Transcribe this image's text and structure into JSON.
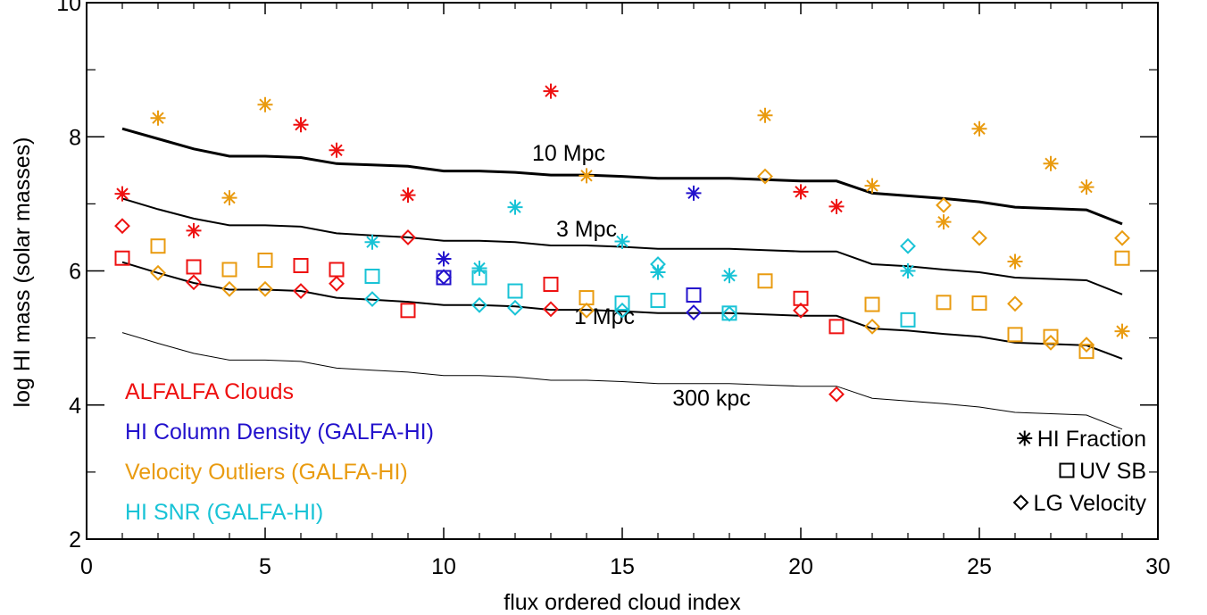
{
  "chart_data": {
    "type": "scatter",
    "xlabel": "flux ordered cloud index",
    "ylabel": "log HI mass (solar masses)",
    "xlim": [
      0,
      30
    ],
    "ylim": [
      2,
      10
    ],
    "x_ticks": [
      "0",
      "5",
      "10",
      "15",
      "20",
      "25",
      "30"
    ],
    "y_ticks": [
      "2",
      "4",
      "6",
      "8",
      "10"
    ],
    "colors": {
      "alfalfa": "#ee1111",
      "column": "#2211cc",
      "velocity": "#e99b10",
      "snr": "#18c3d6"
    },
    "reference_curves": [
      {
        "label": "10 Mpc",
        "stroke": "thick",
        "x": [
          1,
          2,
          3,
          4,
          5,
          6,
          7,
          8,
          9,
          10,
          11,
          12,
          13,
          14,
          15,
          16,
          17,
          18,
          19,
          20,
          21,
          22,
          23,
          24,
          25,
          26,
          27,
          28,
          29
        ],
        "y": [
          8.12,
          7.97,
          7.82,
          7.71,
          7.71,
          7.69,
          7.6,
          7.58,
          7.56,
          7.49,
          7.49,
          7.47,
          7.43,
          7.43,
          7.41,
          7.38,
          7.38,
          7.38,
          7.36,
          7.34,
          7.34,
          7.16,
          7.12,
          7.08,
          7.03,
          6.95,
          6.93,
          6.91,
          6.7
        ]
      },
      {
        "label": "3 Mpc",
        "stroke": "medium",
        "x": [
          1,
          2,
          3,
          4,
          5,
          6,
          7,
          8,
          9,
          10,
          11,
          12,
          13,
          14,
          15,
          16,
          17,
          18,
          19,
          20,
          21,
          22,
          23,
          24,
          25,
          26,
          27,
          28,
          29
        ],
        "y": [
          7.08,
          6.92,
          6.78,
          6.68,
          6.68,
          6.66,
          6.56,
          6.53,
          6.5,
          6.45,
          6.45,
          6.43,
          6.38,
          6.38,
          6.36,
          6.33,
          6.33,
          6.33,
          6.31,
          6.29,
          6.29,
          6.1,
          6.07,
          6.02,
          5.98,
          5.9,
          5.88,
          5.86,
          5.65
        ]
      },
      {
        "label": "1 Mpc",
        "stroke": "medium",
        "x": [
          1,
          2,
          3,
          4,
          5,
          6,
          7,
          8,
          9,
          10,
          11,
          12,
          13,
          14,
          15,
          16,
          17,
          18,
          19,
          20,
          21,
          22,
          23,
          24,
          25,
          26,
          27,
          28,
          29
        ],
        "y": [
          6.13,
          5.97,
          5.82,
          5.72,
          5.72,
          5.7,
          5.6,
          5.57,
          5.54,
          5.49,
          5.49,
          5.47,
          5.42,
          5.42,
          5.4,
          5.37,
          5.37,
          5.37,
          5.35,
          5.33,
          5.33,
          5.14,
          5.11,
          5.06,
          5.02,
          4.93,
          4.91,
          4.89,
          4.69
        ]
      },
      {
        "label": "300 kpc",
        "stroke": "thin",
        "x": [
          1,
          2,
          3,
          4,
          5,
          6,
          7,
          8,
          9,
          10,
          11,
          12,
          13,
          14,
          15,
          16,
          17,
          18,
          19,
          20,
          21,
          22,
          23,
          24,
          25,
          26,
          27,
          28,
          29
        ],
        "y": [
          5.08,
          4.92,
          4.77,
          4.67,
          4.67,
          4.65,
          4.55,
          4.52,
          4.49,
          4.44,
          4.44,
          4.42,
          4.37,
          4.37,
          4.35,
          4.32,
          4.32,
          4.32,
          4.3,
          4.28,
          4.28,
          4.1,
          4.06,
          4.02,
          3.97,
          3.89,
          3.87,
          3.85,
          3.64
        ]
      }
    ],
    "series": [
      {
        "group": "alfalfa",
        "marker": "asterisk",
        "x": [
          1,
          3,
          6,
          7,
          9,
          13,
          20,
          21
        ],
        "y": [
          7.15,
          6.6,
          8.18,
          7.8,
          7.13,
          8.68,
          7.18,
          6.96
        ]
      },
      {
        "group": "alfalfa",
        "marker": "square",
        "x": [
          1,
          3,
          6,
          7,
          9,
          13,
          20,
          21
        ],
        "y": [
          6.19,
          6.06,
          6.08,
          6.02,
          5.41,
          5.8,
          5.59,
          5.17
        ]
      },
      {
        "group": "alfalfa",
        "marker": "diamond",
        "x": [
          1,
          3,
          6,
          7,
          9,
          13,
          20,
          21
        ],
        "y": [
          6.67,
          5.83,
          5.7,
          5.81,
          6.5,
          5.43,
          5.41,
          4.16
        ]
      },
      {
        "group": "column",
        "marker": "asterisk",
        "x": [
          10,
          17
        ],
        "y": [
          6.18,
          7.16
        ]
      },
      {
        "group": "column",
        "marker": "square",
        "x": [
          10,
          17
        ],
        "y": [
          5.9,
          5.64
        ]
      },
      {
        "group": "column",
        "marker": "diamond",
        "x": [
          10,
          17
        ],
        "y": [
          5.91,
          5.38
        ]
      },
      {
        "group": "velocity",
        "marker": "asterisk",
        "x": [
          2,
          4,
          5,
          14,
          19,
          22,
          24,
          25,
          26,
          27,
          28,
          29
        ],
        "y": [
          8.28,
          7.09,
          8.48,
          7.42,
          8.32,
          7.27,
          6.73,
          8.12,
          6.14,
          7.6,
          7.25,
          5.1
        ]
      },
      {
        "group": "velocity",
        "marker": "square",
        "x": [
          2,
          4,
          5,
          14,
          19,
          22,
          24,
          25,
          26,
          27,
          28,
          29
        ],
        "y": [
          6.37,
          6.02,
          6.16,
          5.6,
          5.85,
          5.5,
          5.53,
          5.52,
          5.05,
          5.02,
          4.8,
          6.19
        ]
      },
      {
        "group": "velocity",
        "marker": "diamond",
        "x": [
          2,
          4,
          5,
          14,
          19,
          22,
          24,
          25,
          26,
          27,
          28,
          29
        ],
        "y": [
          5.97,
          5.73,
          5.73,
          5.41,
          7.41,
          5.17,
          6.98,
          6.49,
          5.51,
          4.93,
          4.9,
          6.49
        ]
      },
      {
        "group": "snr",
        "marker": "asterisk",
        "x": [
          8,
          11,
          12,
          15,
          16,
          18,
          23
        ],
        "y": [
          6.43,
          6.04,
          6.95,
          6.44,
          5.98,
          5.93,
          6.0
        ]
      },
      {
        "group": "snr",
        "marker": "square",
        "x": [
          8,
          11,
          12,
          15,
          16,
          18,
          23
        ],
        "y": [
          5.92,
          5.9,
          5.7,
          5.52,
          5.56,
          5.37,
          5.27
        ]
      },
      {
        "group": "snr",
        "marker": "diamond",
        "x": [
          8,
          11,
          12,
          15,
          16,
          18,
          23
        ],
        "y": [
          5.58,
          5.49,
          5.45,
          5.41,
          6.1,
          5.36,
          6.37
        ]
      }
    ],
    "category_legend": [
      {
        "label": "ALFALFA Clouds",
        "group": "alfalfa"
      },
      {
        "label": "HI Column Density (GALFA-HI)",
        "group": "column"
      },
      {
        "label": "Velocity Outliers (GALFA-HI)",
        "group": "velocity"
      },
      {
        "label": "HI SNR (GALFA-HI)",
        "group": "snr"
      }
    ],
    "symbol_legend": [
      {
        "label": "HI Fraction",
        "marker": "asterisk"
      },
      {
        "label": "UV SB",
        "marker": "square"
      },
      {
        "label": "LG Velocity",
        "marker": "diamond"
      }
    ],
    "grid": false
  }
}
